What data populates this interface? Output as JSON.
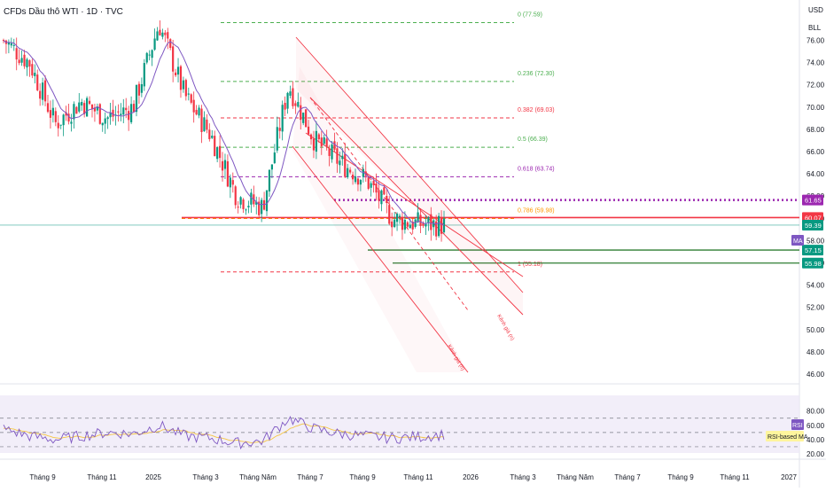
{
  "header": {
    "symbol_title": "CFDs Dầu thô WTI · 1D · TVC"
  },
  "axis_header": {
    "currency": "USD",
    "unit": "BLL"
  },
  "colors": {
    "up": "#089981",
    "down": "#f23645",
    "ma": "#7e57c2",
    "rsi": "#7e57c2",
    "rsi_ma": "#f5c542",
    "fib_green": "#4caf50",
    "fib_red": "#f23645",
    "fib_purple": "#9c27b0",
    "fib_orange": "#ff9800",
    "channel": "#f23645",
    "dotted_level": "#9c27b0",
    "support": "#089981"
  },
  "fibonacci": [
    {
      "label": "0 (77.59)",
      "price": 77.59,
      "color": "fib_green"
    },
    {
      "label": "0.236 (72.30)",
      "price": 72.3,
      "color": "fib_green"
    },
    {
      "label": "0.382 (69.03)",
      "price": 69.03,
      "color": "fib_red"
    },
    {
      "label": "0.5 (66.39)",
      "price": 66.39,
      "color": "fib_green"
    },
    {
      "label": "0.618 (63.74)",
      "price": 63.74,
      "color": "fib_purple"
    },
    {
      "label": "0.786 (59.98)",
      "price": 59.98,
      "color": "fib_orange"
    },
    {
      "label": "1 (55.18)",
      "price": 55.18,
      "color": "fib_red"
    }
  ],
  "price_tags": [
    {
      "text": "61.65",
      "price": 61.65,
      "bg": "#9c27b0"
    },
    {
      "text": "60.07",
      "price": 60.07,
      "bg": "#f23645"
    },
    {
      "text": "59.39",
      "price": 59.39,
      "bg": "#089981"
    },
    {
      "text": "57.15",
      "price": 57.15,
      "bg": "#089981"
    },
    {
      "text": "55.98",
      "price": 55.98,
      "bg": "#089981"
    }
  ],
  "ma_badge": "MA",
  "channel_labels": [
    "Kênh giá (n)",
    "Kênh giá (n)"
  ],
  "rsi_badge": "RSI",
  "rsi_ma_badge": "RSI-based MA",
  "chart_data": [
    {
      "type": "candlestick",
      "title": "CFDs Dầu thô WTI · 1D · TVC",
      "ylabel": "USD / BLL",
      "ylim": [
        45,
        78.2
      ],
      "y_ticks": [
        46.0,
        48.0,
        50.0,
        52.0,
        54.0,
        56.0,
        58.0,
        60.0,
        62.0,
        64.0,
        66.0,
        68.0,
        70.0,
        72.0,
        74.0,
        76.0
      ],
      "x_ticks": [
        "Tháng 9",
        "Tháng 11",
        "2025",
        "Tháng 3",
        "Tháng Năm",
        "Tháng 7",
        "Tháng 9",
        "Tháng 11",
        "2026",
        "Tháng 3",
        "Tháng Năm",
        "Tháng 7",
        "Tháng 9",
        "Tháng 11",
        "2027"
      ],
      "price_path": [
        {
          "date": "Tháng 7/2024",
          "price": 76.0
        },
        {
          "date": "Tháng 8/2024",
          "price": 74.0
        },
        {
          "date": "Tháng 9/2024",
          "price": 68.5
        },
        {
          "date": "Tháng 10/2024",
          "price": 70.5
        },
        {
          "date": "Tháng 11/2024",
          "price": 69.0
        },
        {
          "date": "Tháng 12/2024",
          "price": 70.0
        },
        {
          "date": "Tháng 1/2025",
          "price": 77.5
        },
        {
          "date": "Tháng 2/2025",
          "price": 71.0
        },
        {
          "date": "Tháng 3/2025",
          "price": 67.5
        },
        {
          "date": "Tháng 4/2025",
          "price": 62.0
        },
        {
          "date": "Tháng 5/2025",
          "price": 61.0
        },
        {
          "date": "Tháng 6/2025",
          "price": 72.0
        },
        {
          "date": "Tháng 7/2025",
          "price": 67.0
        },
        {
          "date": "Tháng 8/2025",
          "price": 65.0
        },
        {
          "date": "Tháng 9/2025",
          "price": 63.5
        },
        {
          "date": "Tháng 10/2025",
          "price": 60.0
        },
        {
          "date": "Tháng 11/2025",
          "price": 59.5
        },
        {
          "date": "Tháng 12/2025",
          "price": 59.39
        }
      ]
    },
    {
      "type": "line",
      "title": "RSI",
      "ylim": [
        18,
        82
      ],
      "y_ticks": [
        20.0,
        40.0,
        60.0,
        80.0
      ],
      "bands": [
        30,
        50,
        70
      ],
      "series": [
        {
          "name": "RSI",
          "values_by_month": [
            55,
            45,
            40,
            45,
            50,
            48,
            60,
            45,
            42,
            35,
            38,
            70,
            55,
            48,
            45,
            42,
            44,
            47
          ]
        }
      ]
    }
  ]
}
